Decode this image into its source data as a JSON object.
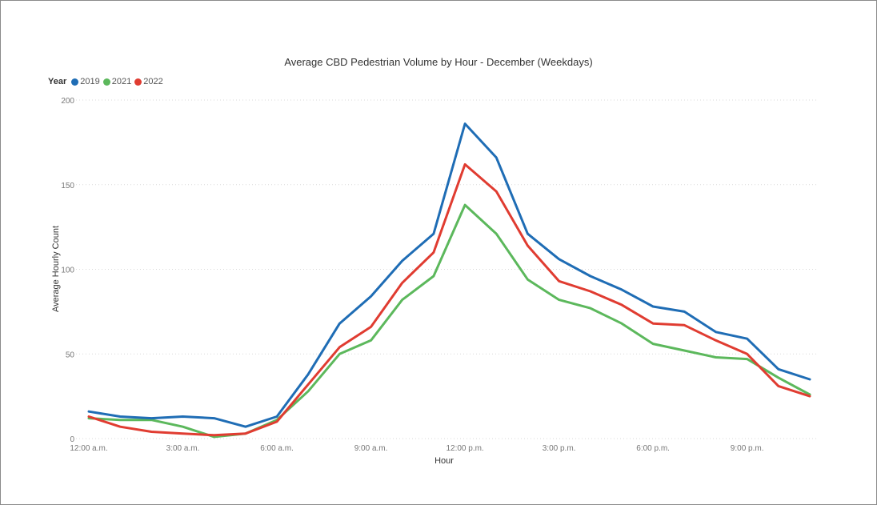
{
  "chart_data": {
    "type": "line",
    "title": "Average CBD Pedestrian Volume by Hour - December (Weekdays)",
    "xlabel": "Hour",
    "ylabel": "Average Hourly Count",
    "ylim": [
      0,
      200
    ],
    "yticks": [
      0,
      50,
      100,
      150,
      200
    ],
    "grid": true,
    "legend_title": "Year",
    "legend_position": "top-left",
    "x": [
      "12:00 a.m.",
      "1:00 a.m.",
      "2:00 a.m.",
      "3:00 a.m.",
      "4:00 a.m.",
      "5:00 a.m.",
      "6:00 a.m.",
      "7:00 a.m.",
      "8:00 a.m.",
      "9:00 a.m.",
      "10:00 a.m.",
      "11:00 a.m.",
      "12:00 p.m.",
      "1:00 p.m.",
      "2:00 p.m.",
      "3:00 p.m.",
      "4:00 p.m.",
      "5:00 p.m.",
      "6:00 p.m.",
      "7:00 p.m.",
      "8:00 p.m.",
      "9:00 p.m.",
      "10:00 p.m.",
      "11:00 p.m."
    ],
    "x_tick_labels": [
      {
        "index": 0,
        "label": "12:00 a.m."
      },
      {
        "index": 3,
        "label": "3:00 a.m."
      },
      {
        "index": 6,
        "label": "6:00 a.m."
      },
      {
        "index": 9,
        "label": "9:00 a.m."
      },
      {
        "index": 12,
        "label": "12:00 p.m."
      },
      {
        "index": 15,
        "label": "3:00 p.m."
      },
      {
        "index": 18,
        "label": "6:00 p.m."
      },
      {
        "index": 21,
        "label": "9:00 p.m."
      }
    ],
    "series": [
      {
        "name": "2019",
        "color": "#1f6db5",
        "values": [
          16,
          13,
          12,
          13,
          12,
          7,
          13,
          38,
          68,
          84,
          105,
          121,
          186,
          166,
          121,
          106,
          96,
          88,
          78,
          75,
          63,
          59,
          41,
          35
        ]
      },
      {
        "name": "2021",
        "color": "#5cb85c",
        "values": [
          12,
          11,
          11,
          7,
          1,
          3,
          11,
          28,
          50,
          58,
          82,
          96,
          138,
          121,
          94,
          82,
          77,
          68,
          56,
          52,
          48,
          47,
          36,
          26
        ]
      },
      {
        "name": "2022",
        "color": "#e03c31",
        "values": [
          13,
          7,
          4,
          3,
          2,
          3,
          10,
          32,
          54,
          66,
          92,
          110,
          162,
          146,
          114,
          93,
          87,
          79,
          68,
          67,
          58,
          50,
          31,
          25
        ]
      }
    ]
  }
}
